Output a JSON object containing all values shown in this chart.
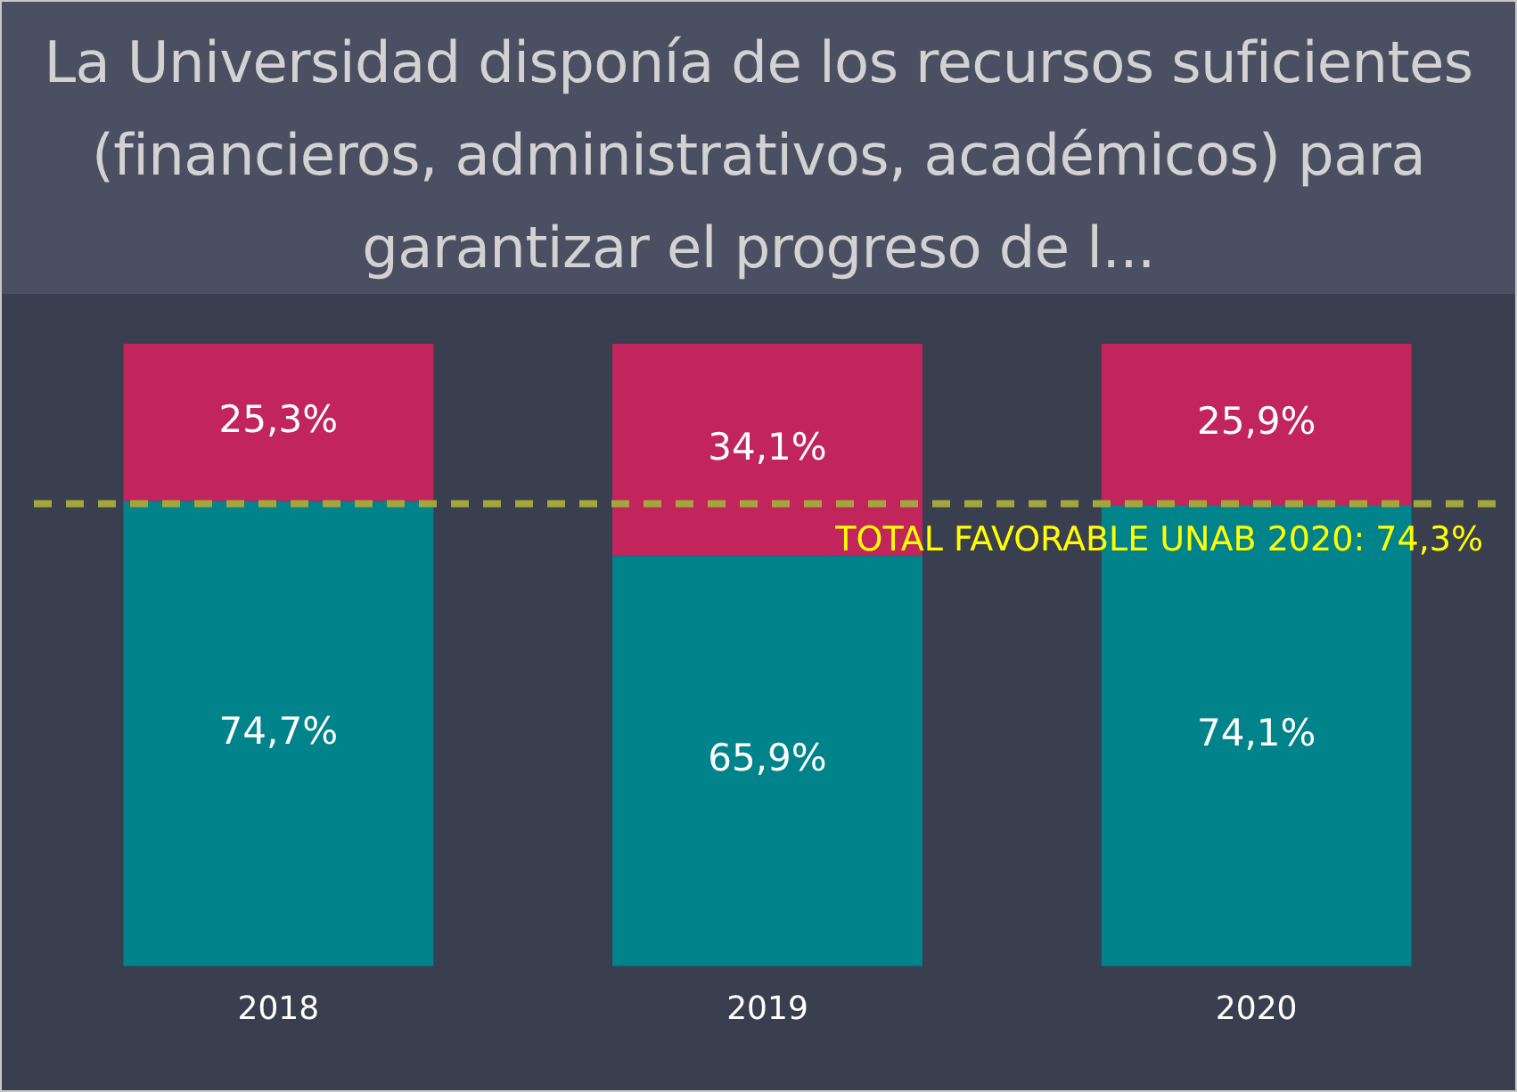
{
  "chart_data": {
    "type": "bar",
    "title": "La Universidad disponía de los recursos suficientes (financieros, administrativos, académicos) para garantizar el progreso de l...",
    "categories": [
      "2018",
      "2019",
      "2020"
    ],
    "stacked": true,
    "series": [
      {
        "color": "#00838a",
        "values": [
          74.7,
          65.9,
          74.1
        ],
        "value_labels": [
          "74,7%",
          "65,9%",
          "74,1%"
        ]
      },
      {
        "color": "#c2255c",
        "values": [
          25.3,
          34.1,
          25.9
        ],
        "value_labels": [
          "25,3%",
          "34,1%",
          "25,9%"
        ]
      }
    ],
    "ylim": [
      0,
      100
    ],
    "tick_labels": "x",
    "grid": false,
    "legend": false,
    "ref_lines": [
      {
        "axis": "y",
        "value": 74.3,
        "label": "TOTAL FAVORABLE UNAB 2020: 74,3%",
        "color": "#a3a63b",
        "line_style": "dashed"
      }
    ]
  }
}
